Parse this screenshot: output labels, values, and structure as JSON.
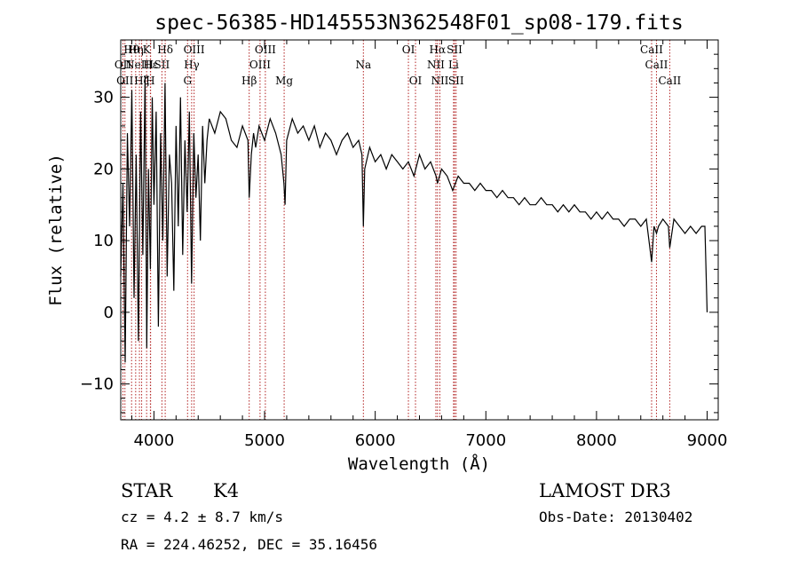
{
  "chart_data": {
    "type": "line",
    "title": "spec-56385-HD145553N362548F01_sp08-179.fits",
    "xlabel": "Wavelength (Å)",
    "ylabel": "Flux (relative)",
    "xlim": [
      3700,
      9100
    ],
    "ylim": [
      -15,
      38
    ],
    "x_ticks": [
      {
        "value": 4000,
        "label": "4000"
      },
      {
        "value": 5000,
        "label": "5000"
      },
      {
        "value": 6000,
        "label": "6000"
      },
      {
        "value": 7000,
        "label": "7000"
      },
      {
        "value": 8000,
        "label": "8000"
      },
      {
        "value": 9000,
        "label": "9000"
      }
    ],
    "y_ticks": [
      {
        "value": -10,
        "label": "−10"
      },
      {
        "value": 0,
        "label": "0"
      },
      {
        "value": 10,
        "label": "10"
      },
      {
        "value": 20,
        "label": "20"
      },
      {
        "value": 30,
        "label": "30"
      }
    ],
    "series": [
      {
        "name": "spectrum",
        "x": [
          3700,
          3720,
          3740,
          3760,
          3780,
          3800,
          3820,
          3840,
          3860,
          3880,
          3900,
          3920,
          3935,
          3950,
          3968,
          3985,
          4000,
          4020,
          4040,
          4060,
          4080,
          4100,
          4120,
          4140,
          4160,
          4180,
          4200,
          4220,
          4240,
          4260,
          4280,
          4300,
          4320,
          4340,
          4360,
          4380,
          4400,
          4420,
          4440,
          4460,
          4480,
          4500,
          4550,
          4600,
          4650,
          4700,
          4750,
          4800,
          4850,
          4861,
          4880,
          4900,
          4920,
          4950,
          5000,
          5050,
          5100,
          5150,
          5175,
          5185,
          5200,
          5250,
          5300,
          5350,
          5400,
          5450,
          5500,
          5550,
          5600,
          5650,
          5700,
          5750,
          5800,
          5850,
          5880,
          5893,
          5905,
          5950,
          6000,
          6050,
          6100,
          6150,
          6200,
          6250,
          6300,
          6350,
          6400,
          6450,
          6500,
          6550,
          6563,
          6600,
          6650,
          6700,
          6750,
          6800,
          6850,
          6900,
          6950,
          7000,
          7050,
          7100,
          7150,
          7200,
          7250,
          7300,
          7350,
          7400,
          7450,
          7500,
          7550,
          7600,
          7650,
          7700,
          7750,
          7800,
          7850,
          7900,
          7950,
          8000,
          8050,
          8100,
          8150,
          8200,
          8250,
          8300,
          8350,
          8400,
          8450,
          8498,
          8520,
          8542,
          8560,
          8600,
          8650,
          8662,
          8700,
          8750,
          8800,
          8850,
          8900,
          8950,
          8980,
          9000
        ],
        "y": [
          5,
          18,
          -7,
          25,
          12,
          31,
          2,
          22,
          -4,
          28,
          8,
          33,
          -5,
          20,
          6,
          30,
          15,
          28,
          -2,
          25,
          10,
          32,
          5,
          22,
          18,
          3,
          26,
          12,
          30,
          8,
          24,
          14,
          28,
          4,
          25,
          16,
          22,
          10,
          26,
          18,
          24,
          27,
          25,
          28,
          27,
          24,
          23,
          26,
          24,
          16,
          22,
          25,
          23,
          26,
          24,
          27,
          25,
          22,
          18,
          15,
          24,
          27,
          25,
          26,
          24,
          26,
          23,
          25,
          24,
          22,
          24,
          25,
          23,
          24,
          22,
          12,
          20,
          23,
          21,
          22,
          20,
          22,
          21,
          20,
          21,
          19,
          22,
          20,
          21,
          19,
          18,
          20,
          19,
          17,
          19,
          18,
          18,
          17,
          18,
          17,
          17,
          16,
          17,
          16,
          16,
          15,
          16,
          15,
          15,
          16,
          15,
          15,
          14,
          15,
          14,
          15,
          14,
          14,
          13,
          14,
          13,
          14,
          13,
          13,
          12,
          13,
          13,
          12,
          13,
          7,
          12,
          11,
          12,
          13,
          12,
          9,
          13,
          12,
          11,
          12,
          11,
          12,
          12,
          0
        ]
      }
    ],
    "lines": [
      {
        "wl": 3720,
        "row": 1,
        "label": "OII"
      },
      {
        "wl": 3738,
        "row": 2,
        "label": "OII"
      },
      {
        "wl": 3798,
        "row": 0,
        "label": "Hθ"
      },
      {
        "wl": 3835,
        "row": 0,
        "label": "Hη"
      },
      {
        "wl": 3869,
        "row": 1,
        "label": "NeIII"
      },
      {
        "wl": 3889,
        "row": 2,
        "label": "Hζ"
      },
      {
        "wl": 3934,
        "row": 0,
        "label": "K"
      },
      {
        "wl": 3968,
        "row": 2,
        "label": "H"
      },
      {
        "wl": 3970,
        "row": 1,
        "label": "Hε"
      },
      {
        "wl": 4072,
        "row": 1,
        "label": "SII"
      },
      {
        "wl": 4102,
        "row": 0,
        "label": "Hδ"
      },
      {
        "wl": 4304,
        "row": 2,
        "label": "G"
      },
      {
        "wl": 4341,
        "row": 1,
        "label": "Hγ"
      },
      {
        "wl": 4363,
        "row": 0,
        "label": "OIII"
      },
      {
        "wl": 4861,
        "row": 2,
        "label": "Hβ"
      },
      {
        "wl": 4959,
        "row": 1,
        "label": "OIII"
      },
      {
        "wl": 5007,
        "row": 0,
        "label": "OIII"
      },
      {
        "wl": 5177,
        "row": 2,
        "label": "Mg"
      },
      {
        "wl": 5893,
        "row": 1,
        "label": "Na"
      },
      {
        "wl": 6300,
        "row": 0,
        "label": "OI"
      },
      {
        "wl": 6364,
        "row": 2,
        "label": "OI"
      },
      {
        "wl": 6548,
        "row": 1,
        "label": "NII"
      },
      {
        "wl": 6563,
        "row": 0,
        "label": "Hα"
      },
      {
        "wl": 6584,
        "row": 2,
        "label": "NII"
      },
      {
        "wl": 6708,
        "row": 1,
        "label": "Li"
      },
      {
        "wl": 6717,
        "row": 0,
        "label": "SII"
      },
      {
        "wl": 6731,
        "row": 2,
        "label": "SII"
      },
      {
        "wl": 8498,
        "row": 0,
        "label": "CaII"
      },
      {
        "wl": 8542,
        "row": 1,
        "label": "CaII"
      },
      {
        "wl": 8662,
        "row": 2,
        "label": "CaII"
      }
    ]
  },
  "info": {
    "class": "STAR",
    "subclass": "K4",
    "survey": "LAMOST DR3",
    "cz": "cz = 4.2 ± 8.7 km/s",
    "obs_date": "Obs-Date: 20130402",
    "radec": "RA = 224.46252, DEC =  35.16456"
  },
  "colors": {
    "line_marker": "#b22222",
    "spectrum": "#000000",
    "axes": "#000000"
  }
}
